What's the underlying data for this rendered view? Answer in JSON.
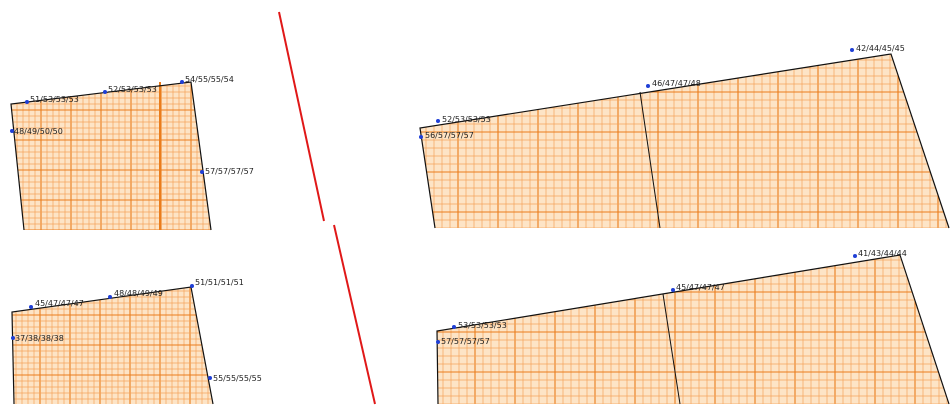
{
  "colors": {
    "background": "#ffffff",
    "grid_fine": "#f5a35a",
    "grid_major": "#ea7d1c",
    "fill": "#fde4c6",
    "outline": "#111111",
    "marker": "#1f3fd6",
    "divider": "#e01818"
  },
  "panels": [
    {
      "id": "top-left",
      "labels": [
        {
          "text": "51/53/53/53"
        },
        {
          "text": "52/53/53/53"
        },
        {
          "text": "54/55/55/54"
        },
        {
          "text": "48/49/50/50"
        },
        {
          "text": "57/57/57/57"
        }
      ]
    },
    {
      "id": "top-right",
      "labels": [
        {
          "text": "42/44/45/45"
        },
        {
          "text": "46/47/47/48"
        },
        {
          "text": "52/53/53/53"
        },
        {
          "text": "56/57/57/57"
        }
      ]
    },
    {
      "id": "bottom-left",
      "labels": [
        {
          "text": "45/47/47/47"
        },
        {
          "text": "48/48/49/49"
        },
        {
          "text": "51/51/51/51"
        },
        {
          "text": "37/38/38/38"
        },
        {
          "text": "55/55/55/55"
        }
      ]
    },
    {
      "id": "bottom-right",
      "labels": [
        {
          "text": "41/43/44/44"
        },
        {
          "text": "45/47/47/47"
        },
        {
          "text": "53/53/53/53"
        },
        {
          "text": "57/57/57/57"
        }
      ]
    }
  ]
}
